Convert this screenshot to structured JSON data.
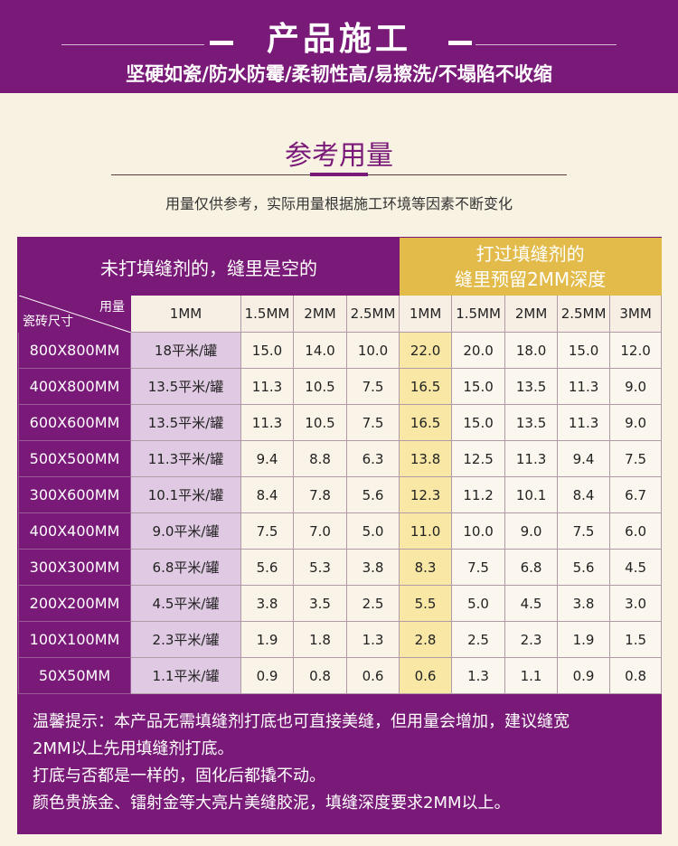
{
  "banner": {
    "title": "产品施工",
    "subtitle": "坚硬如瓷/防水防霉/柔韧性高/易擦洗/不塌陷不收缩"
  },
  "section": {
    "title": "参考用量",
    "note": "用量仅供参考，实际用量根据施工环境等因素不断变化"
  },
  "table": {
    "left_header": "未打填缝剂的，缝里是空的",
    "right_header_line1": "打过填缝剂的",
    "right_header_line2": "缝里预留2MM深度",
    "corner_top": "用量",
    "corner_bottom": "瓷砖尺寸",
    "left_cols": [
      "1MM",
      "1.5MM",
      "2MM",
      "2.5MM"
    ],
    "right_cols": [
      "1MM",
      "1.5MM",
      "2MM",
      "2.5MM",
      "3MM"
    ],
    "rows": [
      {
        "size": "800X800MM",
        "left": [
          "18平米/罐",
          "15.0",
          "14.0",
          "10.0"
        ],
        "right": [
          "22.0",
          "20.0",
          "18.0",
          "15.0",
          "12.0"
        ]
      },
      {
        "size": "400X800MM",
        "left": [
          "13.5平米/罐",
          "11.3",
          "10.5",
          "7.5"
        ],
        "right": [
          "16.5",
          "15.0",
          "13.5",
          "11.3",
          "9.0"
        ]
      },
      {
        "size": "600X600MM",
        "left": [
          "13.5平米/罐",
          "11.3",
          "10.5",
          "7.5"
        ],
        "right": [
          "16.5",
          "15.0",
          "13.5",
          "11.3",
          "9.0"
        ]
      },
      {
        "size": "500X500MM",
        "left": [
          "11.3平米/罐",
          "9.4",
          "8.8",
          "6.3"
        ],
        "right": [
          "13.8",
          "12.5",
          "11.3",
          "9.4",
          "7.5"
        ]
      },
      {
        "size": "300X600MM",
        "left": [
          "10.1平米/罐",
          "8.4",
          "7.8",
          "5.6"
        ],
        "right": [
          "12.3",
          "11.2",
          "10.1",
          "8.4",
          "6.7"
        ]
      },
      {
        "size": "400X400MM",
        "left": [
          "9.0平米/罐",
          "7.5",
          "7.0",
          "5.0"
        ],
        "right": [
          "11.0",
          "10.0",
          "9.0",
          "7.5",
          "6.0"
        ]
      },
      {
        "size": "300X300MM",
        "left": [
          "6.8平米/罐",
          "5.6",
          "5.3",
          "3.8"
        ],
        "right": [
          "8.3",
          "7.5",
          "6.8",
          "5.6",
          "4.5"
        ]
      },
      {
        "size": "200X200MM",
        "left": [
          "4.5平米/罐",
          "3.8",
          "3.5",
          "2.5"
        ],
        "right": [
          "5.5",
          "5.0",
          "4.5",
          "3.8",
          "3.0"
        ]
      },
      {
        "size": "100X100MM",
        "left": [
          "2.3平米/罐",
          "1.9",
          "1.8",
          "1.3"
        ],
        "right": [
          "2.8",
          "2.5",
          "2.3",
          "1.9",
          "1.5"
        ]
      },
      {
        "size": "50X50MM",
        "left": [
          "1.1平米/罐",
          "0.9",
          "0.8",
          "0.6"
        ],
        "right": [
          "0.6",
          "1.3",
          "1.1",
          "0.9",
          "0.8"
        ]
      }
    ]
  },
  "tips": {
    "line1": "温馨提示：本产品无需填缝剂打底也可直接美缝，但用量会增加，建议缝宽",
    "line2": "2MM以上先用填缝剂打底。",
    "line3": "打底与否都是一样的，固化后都撬不动。",
    "line4": "颜色贵族金、镭射金等大亮片美缝胶泥，填缝深度要求2MM以上。"
  },
  "colors": {
    "purple": "#7a1a78",
    "gold": "#e3bb4b",
    "cream": "#f8f2e2"
  }
}
